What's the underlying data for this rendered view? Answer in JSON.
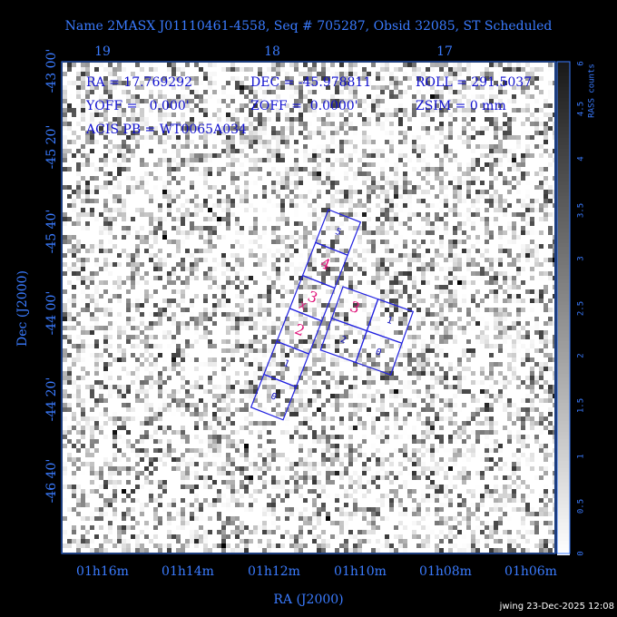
{
  "header": {
    "title": "Name 2MASX J01110461-4558, Seq # 705287, Obsid 32085, ST Scheduled"
  },
  "info": {
    "ra": "RA = 17.769292",
    "dec": "DEC = -45.978811",
    "roll": "ROLL = 291.5037",
    "yoff": "YOFF =   0.000'",
    "zoff": "ZOFF =  0.0000'",
    "zsim": "ZSIM = 0 mm",
    "acis_pb": "ACIS PB = WT0065A034"
  },
  "axes": {
    "top_ticks": [
      "19",
      "18",
      "17"
    ],
    "left_ticks": [
      "-43 00'",
      "-45 20'",
      "-45 40'",
      "-44 00'",
      "-44 20'",
      "-46 40'"
    ],
    "bottom_ticks": [
      "01h16m",
      "01h14m",
      "01h12m",
      "01h10m",
      "01h08m",
      "01h06m"
    ],
    "x_label": "RA (J2000)",
    "y_label": "Dec (J2000)"
  },
  "colorbar": {
    "label": "RASS counts",
    "ticks": [
      "6",
      "4.5",
      "4",
      "3.5",
      "3",
      "2.5",
      "2",
      "1.5",
      "1",
      "0.5",
      "0"
    ]
  },
  "chips": {
    "strip": [
      "5",
      "4",
      "3",
      "2",
      "1",
      "0"
    ],
    "array": [
      "3",
      "1",
      "2",
      "0"
    ],
    "aimpoint": "X"
  },
  "footer": "jwing 23-Dec-2025 12:08"
}
